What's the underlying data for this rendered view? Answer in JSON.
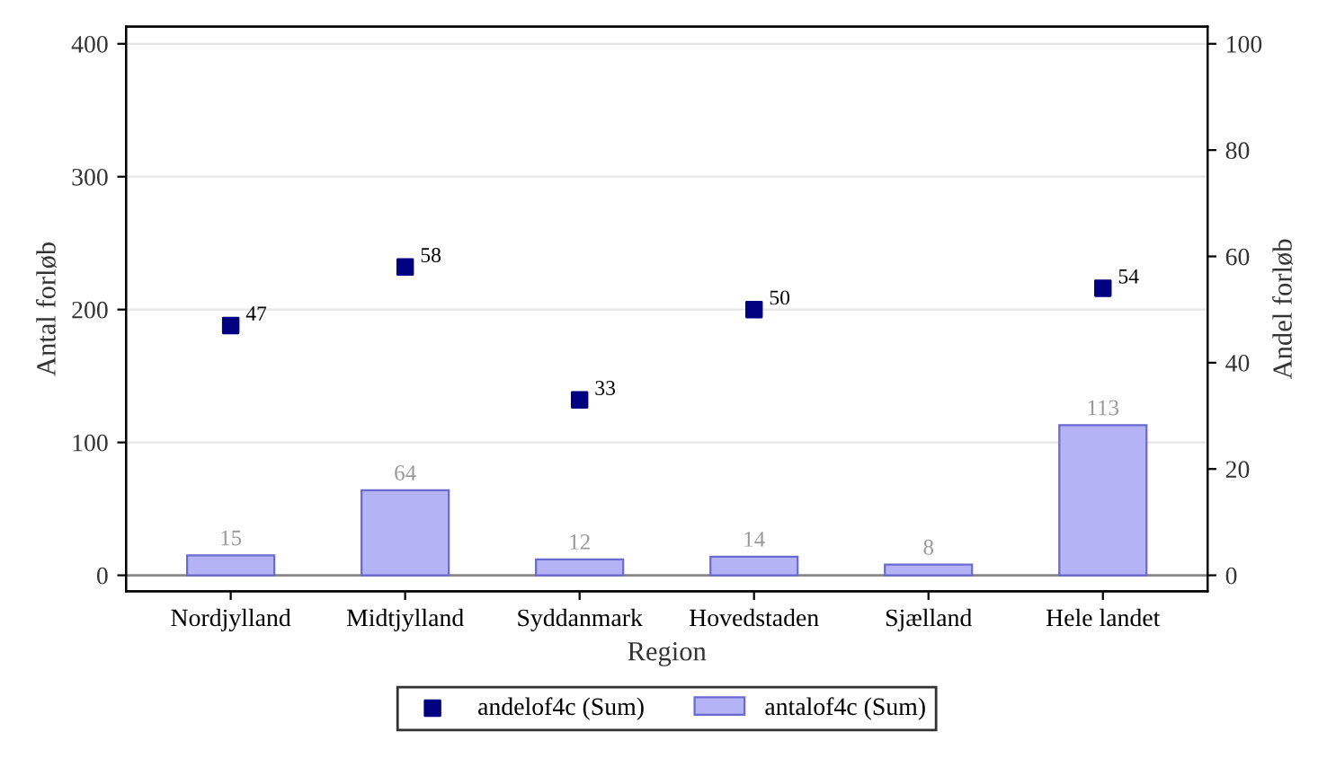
{
  "chart_data": {
    "type": "bar",
    "xlabel": "Region",
    "ylabel": "Antal forløb",
    "y2label": "Andel forløb",
    "categories": [
      "Nordjylland",
      "Midtjylland",
      "Syddanmark",
      "Hovedstaden",
      "Sjælland",
      "Hele landet"
    ],
    "series": [
      {
        "name": "andelof4c (Sum)",
        "type": "scatter",
        "axis": "y2",
        "color": "#000080",
        "values": [
          47,
          58,
          33,
          50,
          null,
          54
        ]
      },
      {
        "name": "antalof4c (Sum)",
        "color": "#b3b3f5",
        "values": [
          15,
          64,
          12,
          14,
          8,
          113
        ]
      }
    ],
    "ylim": [
      -12,
      413
    ],
    "yticks": [
      0,
      100,
      200,
      300,
      400
    ],
    "y2lim": [
      -3,
      103.25
    ],
    "y2ticks": [
      0,
      20,
      40,
      60,
      80,
      100
    ],
    "grid": "y",
    "legend": "bottom",
    "marker": "square",
    "data_labels": true
  }
}
